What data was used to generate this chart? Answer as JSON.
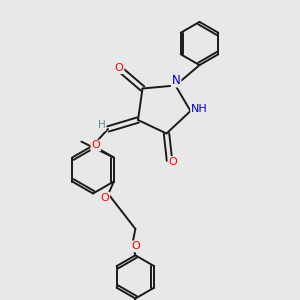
{
  "bg_color": "#e8e8e8",
  "bond_color": "#1a1a1a",
  "bond_width": 1.4,
  "atom_colors": {
    "O": "#ff0000",
    "N": "#0000cc",
    "H": "#5a8a8a"
  },
  "fig_size": [
    3.0,
    3.0
  ],
  "dpi": 100
}
